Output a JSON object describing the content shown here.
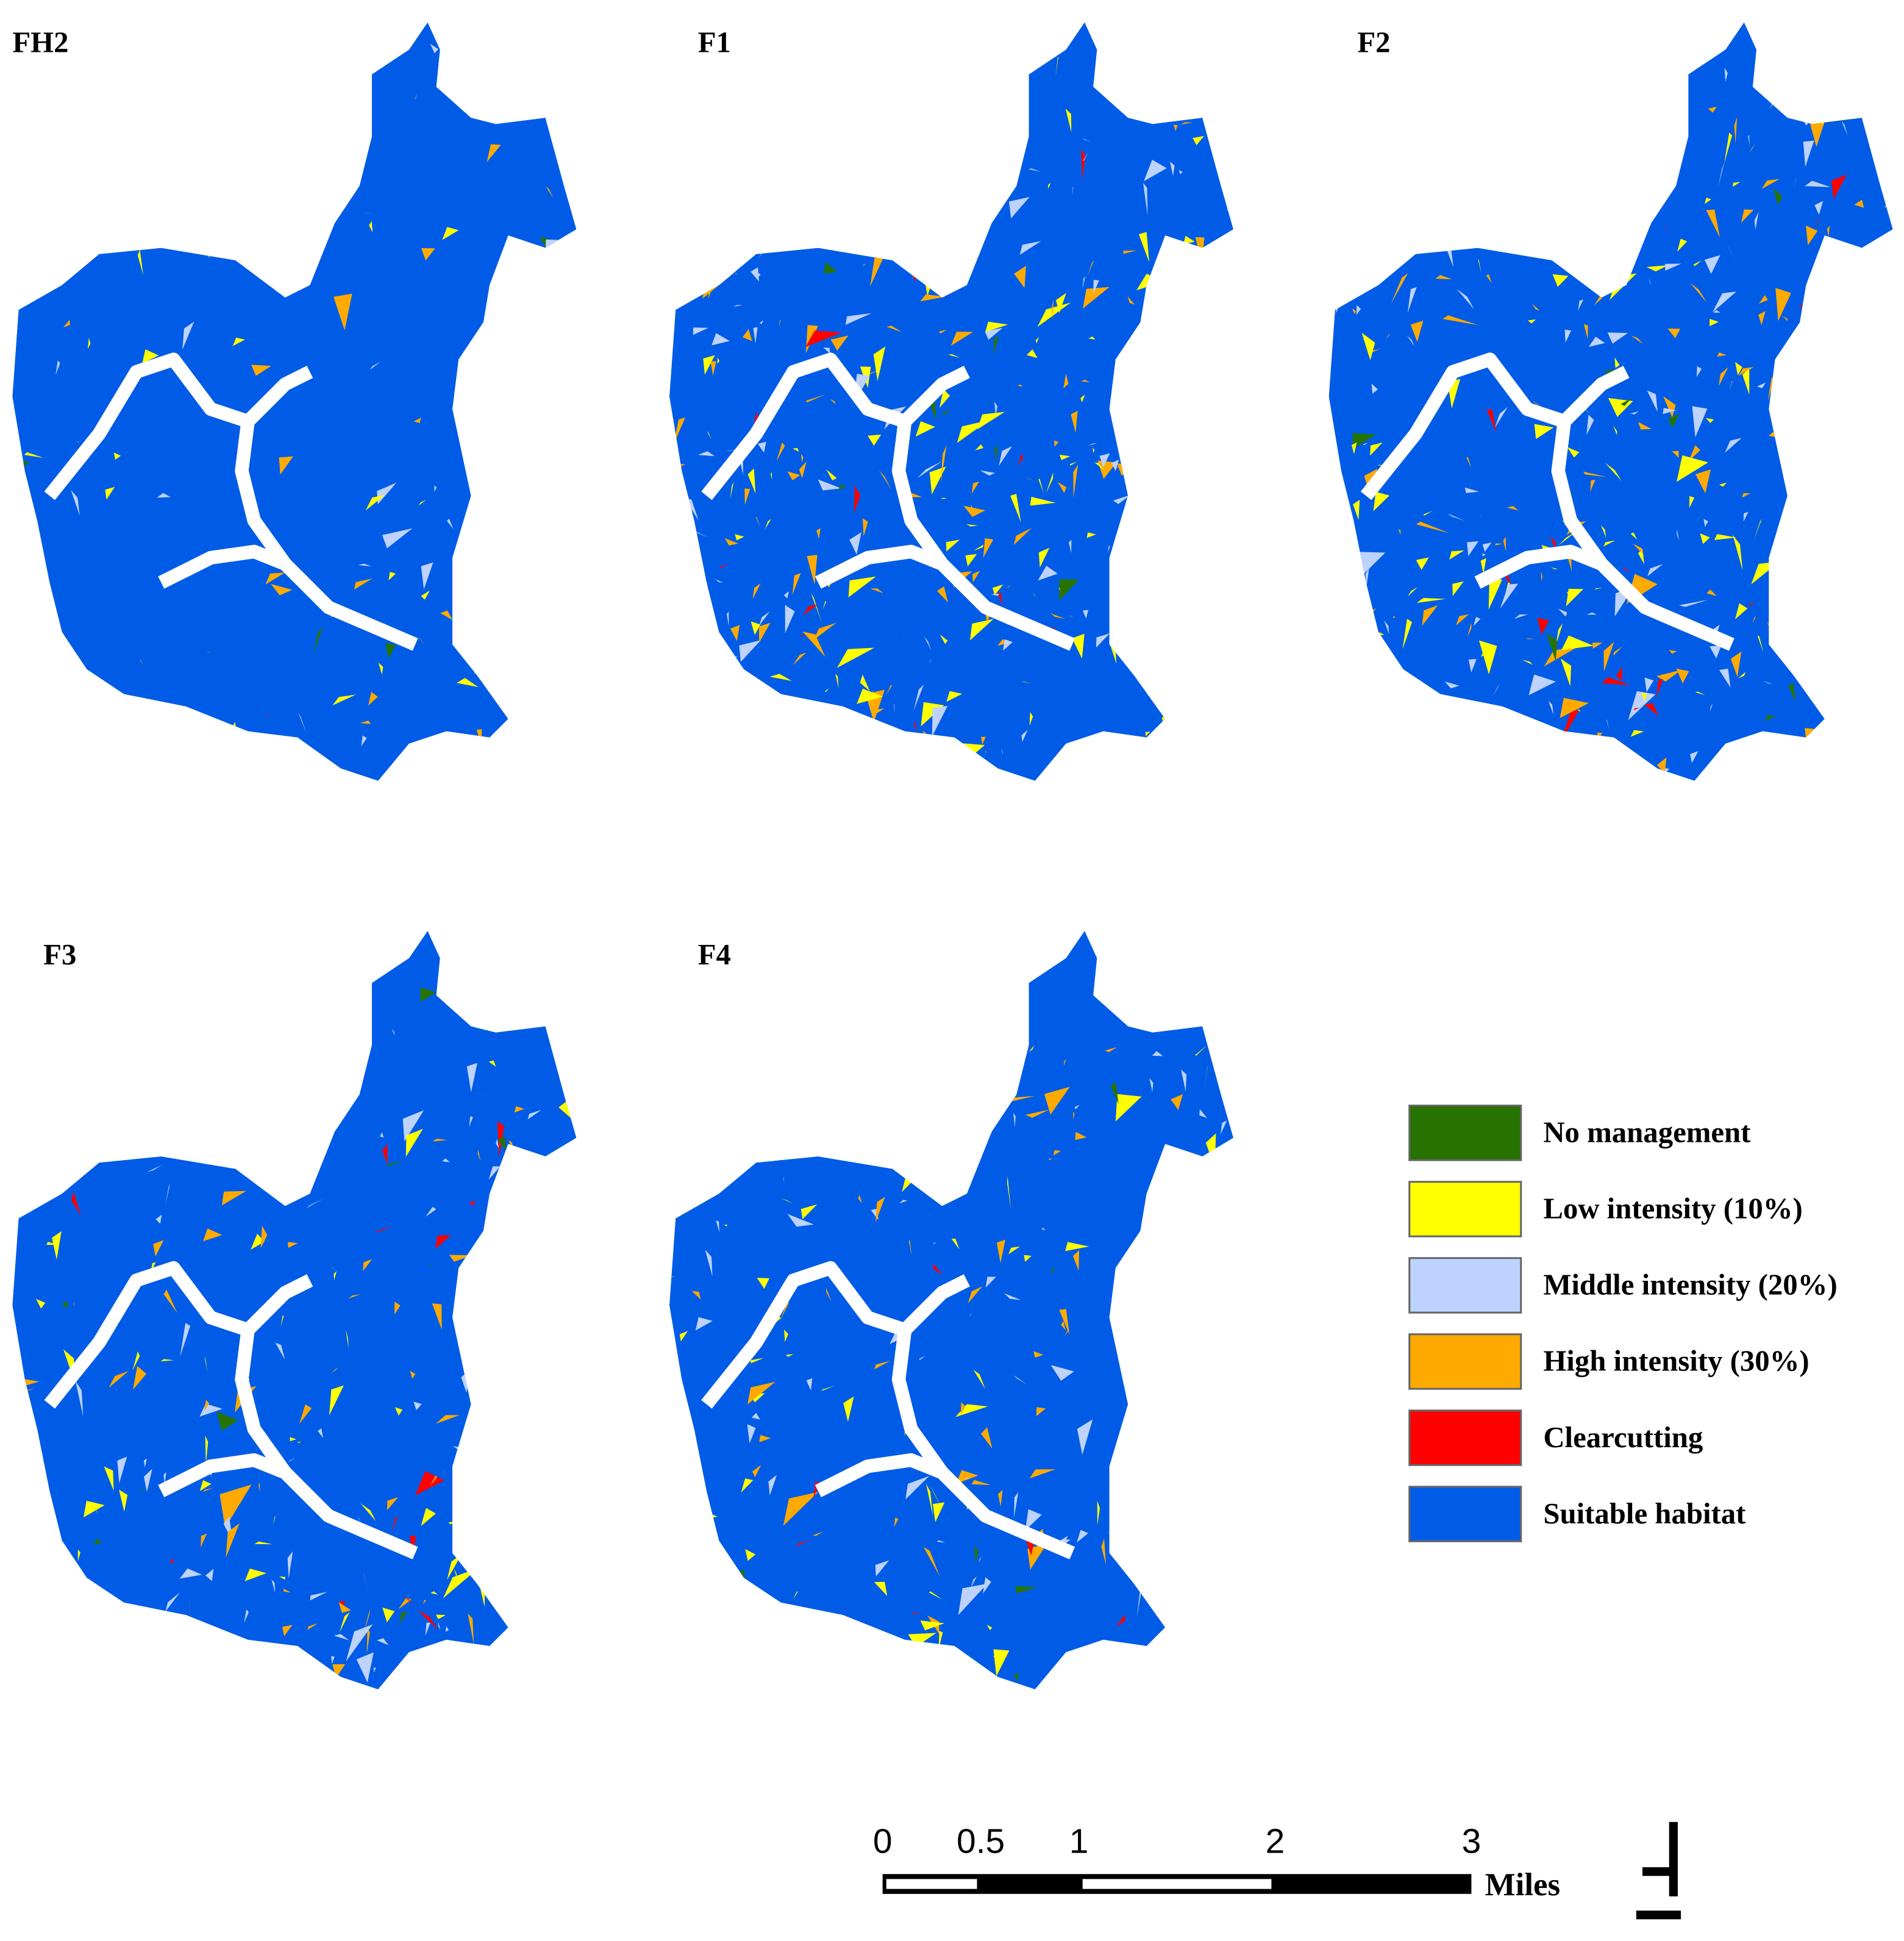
{
  "panels": [
    {
      "label": "FH2"
    },
    {
      "label": "F1"
    },
    {
      "label": "F2"
    },
    {
      "label": "F3"
    },
    {
      "label": "F4"
    }
  ],
  "legend": {
    "items": [
      {
        "label": "No management",
        "color": "#267300"
      },
      {
        "label": "Low intensity (10%)",
        "color": "#ffff00"
      },
      {
        "label": "Middle intensity (20%)",
        "color": "#bed2ff"
      },
      {
        "label": "High intensity (30%)",
        "color": "#ffaa00"
      },
      {
        "label": "Clearcutting",
        "color": "#ff0000"
      },
      {
        "label": "Suitable habitat",
        "color": "#005ce6"
      }
    ]
  },
  "scale_bar": {
    "ticks": [
      0,
      0.5,
      1,
      2,
      3
    ],
    "unit": "Miles"
  }
}
